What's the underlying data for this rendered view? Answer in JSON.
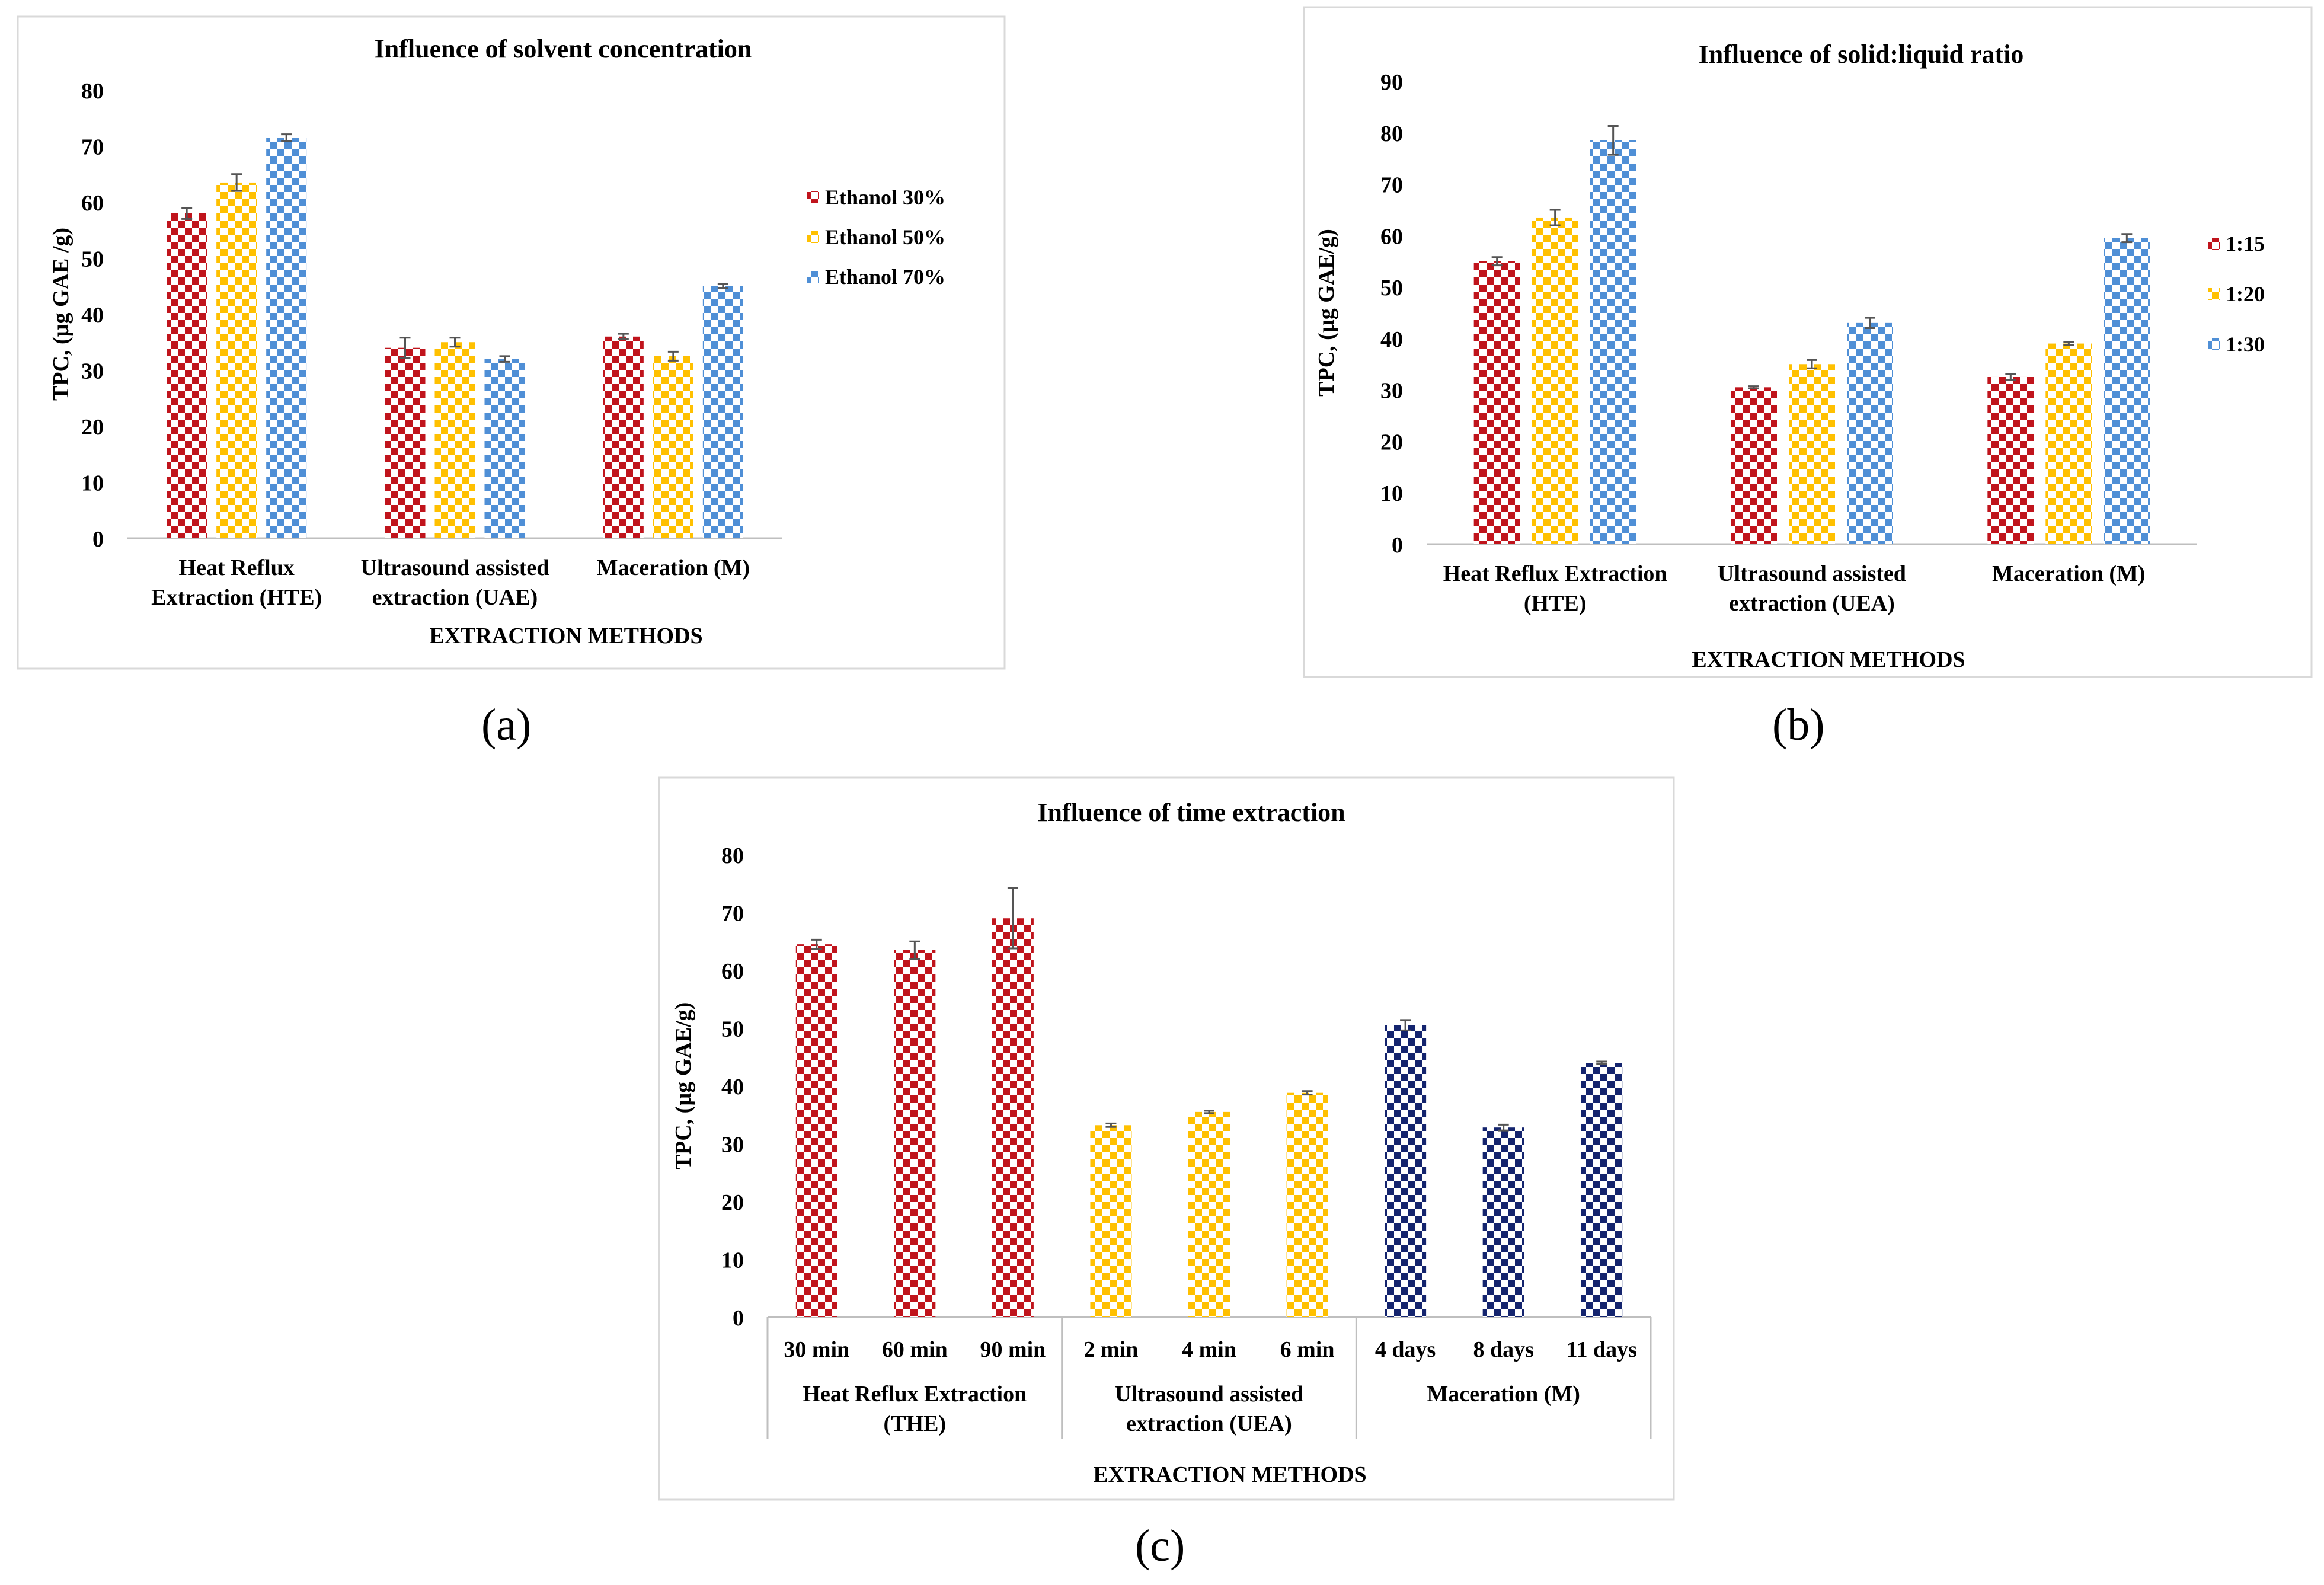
{
  "panels": [
    {
      "label": "(a)"
    },
    {
      "label": "(b)"
    },
    {
      "label": "(c)"
    }
  ],
  "colors": {
    "red": "#c0141c",
    "yellow": "#ffc000",
    "blue": "#4f8fd6",
    "navy": "#14246e",
    "frame": "#d9d9d9",
    "axis": "#bfbfbf",
    "text": "#000000"
  },
  "chart_data": [
    {
      "type": "bar",
      "title": "Influence of solvent concentration",
      "xlabel": "EXTRACTION METHODS",
      "ylabel": "TPC, (µg GAE /g)",
      "ylim": [
        0,
        80
      ],
      "yticks": [
        0,
        10,
        20,
        30,
        40,
        50,
        60,
        70,
        80
      ],
      "categories": [
        [
          "Heat Reflux",
          "Extraction (HTE)"
        ],
        [
          "Ultrasound assisted",
          "extraction (UAE)"
        ],
        [
          "Maceration (M)"
        ]
      ],
      "series": [
        {
          "name": "Ethanol 30%",
          "color": "red",
          "values": [
            58,
            34,
            36
          ],
          "errors": [
            1,
            1.8,
            0.5
          ]
        },
        {
          "name": "Ethanol 50%",
          "color": "yellow",
          "values": [
            63.5,
            35,
            32.5
          ],
          "errors": [
            1.5,
            0.8,
            0.8
          ]
        },
        {
          "name": "Ethanol 70%",
          "color": "blue",
          "values": [
            71.5,
            32,
            45
          ],
          "errors": [
            0.6,
            0.5,
            0.4
          ]
        }
      ],
      "legend": "right",
      "grid": false
    },
    {
      "type": "bar",
      "title": "Influence of solid:liquid ratio",
      "xlabel": "EXTRACTION METHODS",
      "ylabel": "TPC, (µg GAE/g)",
      "ylim": [
        0,
        90
      ],
      "yticks": [
        0,
        10,
        20,
        30,
        40,
        50,
        60,
        70,
        80,
        90
      ],
      "categories": [
        [
          "Heat Reflux Extraction",
          "(HTE)"
        ],
        [
          "Ultrasound assisted",
          "extraction (UEA)"
        ],
        [
          "Maceration (M)"
        ]
      ],
      "series": [
        {
          "name": "1:15",
          "color": "red",
          "values": [
            55,
            30.5,
            32.5
          ],
          "errors": [
            0.8,
            0.2,
            0.6
          ]
        },
        {
          "name": "1:20",
          "color": "yellow",
          "values": [
            63.5,
            35,
            39
          ],
          "errors": [
            1.5,
            0.8,
            0.3
          ]
        },
        {
          "name": "1:30",
          "color": "blue",
          "values": [
            78.5,
            43,
            59.5
          ],
          "errors": [
            2.8,
            1,
            0.8
          ]
        }
      ],
      "legend": "right",
      "grid": false
    },
    {
      "type": "bar",
      "title": "Influence of time extraction",
      "xlabel": "EXTRACTION METHODS",
      "ylabel": "TPC, (µg GAE/g)",
      "ylim": [
        0,
        80
      ],
      "yticks": [
        0,
        10,
        20,
        30,
        40,
        50,
        60,
        70,
        80
      ],
      "categories": [
        "30 min",
        "60 min",
        "90 min",
        "2 min",
        "4 min",
        "6 min",
        "4 days",
        "8 days",
        "11 days"
      ],
      "groups": [
        {
          "label": [
            "Heat Reflux Extraction",
            "(THE)"
          ],
          "color": "red"
        },
        {
          "label": [
            "Ultrasound assisted",
            "extraction (UEA)"
          ],
          "color": "yellow"
        },
        {
          "label": [
            "Maceration (M)"
          ],
          "color": "navy"
        }
      ],
      "values": [
        64.5,
        63.5,
        69,
        33.2,
        35.5,
        38.8,
        50.5,
        32.8,
        44
      ],
      "errors": [
        0.8,
        1.5,
        5.2,
        0.3,
        0.2,
        0.3,
        0.9,
        0.5,
        0.2
      ],
      "grid": false
    }
  ]
}
